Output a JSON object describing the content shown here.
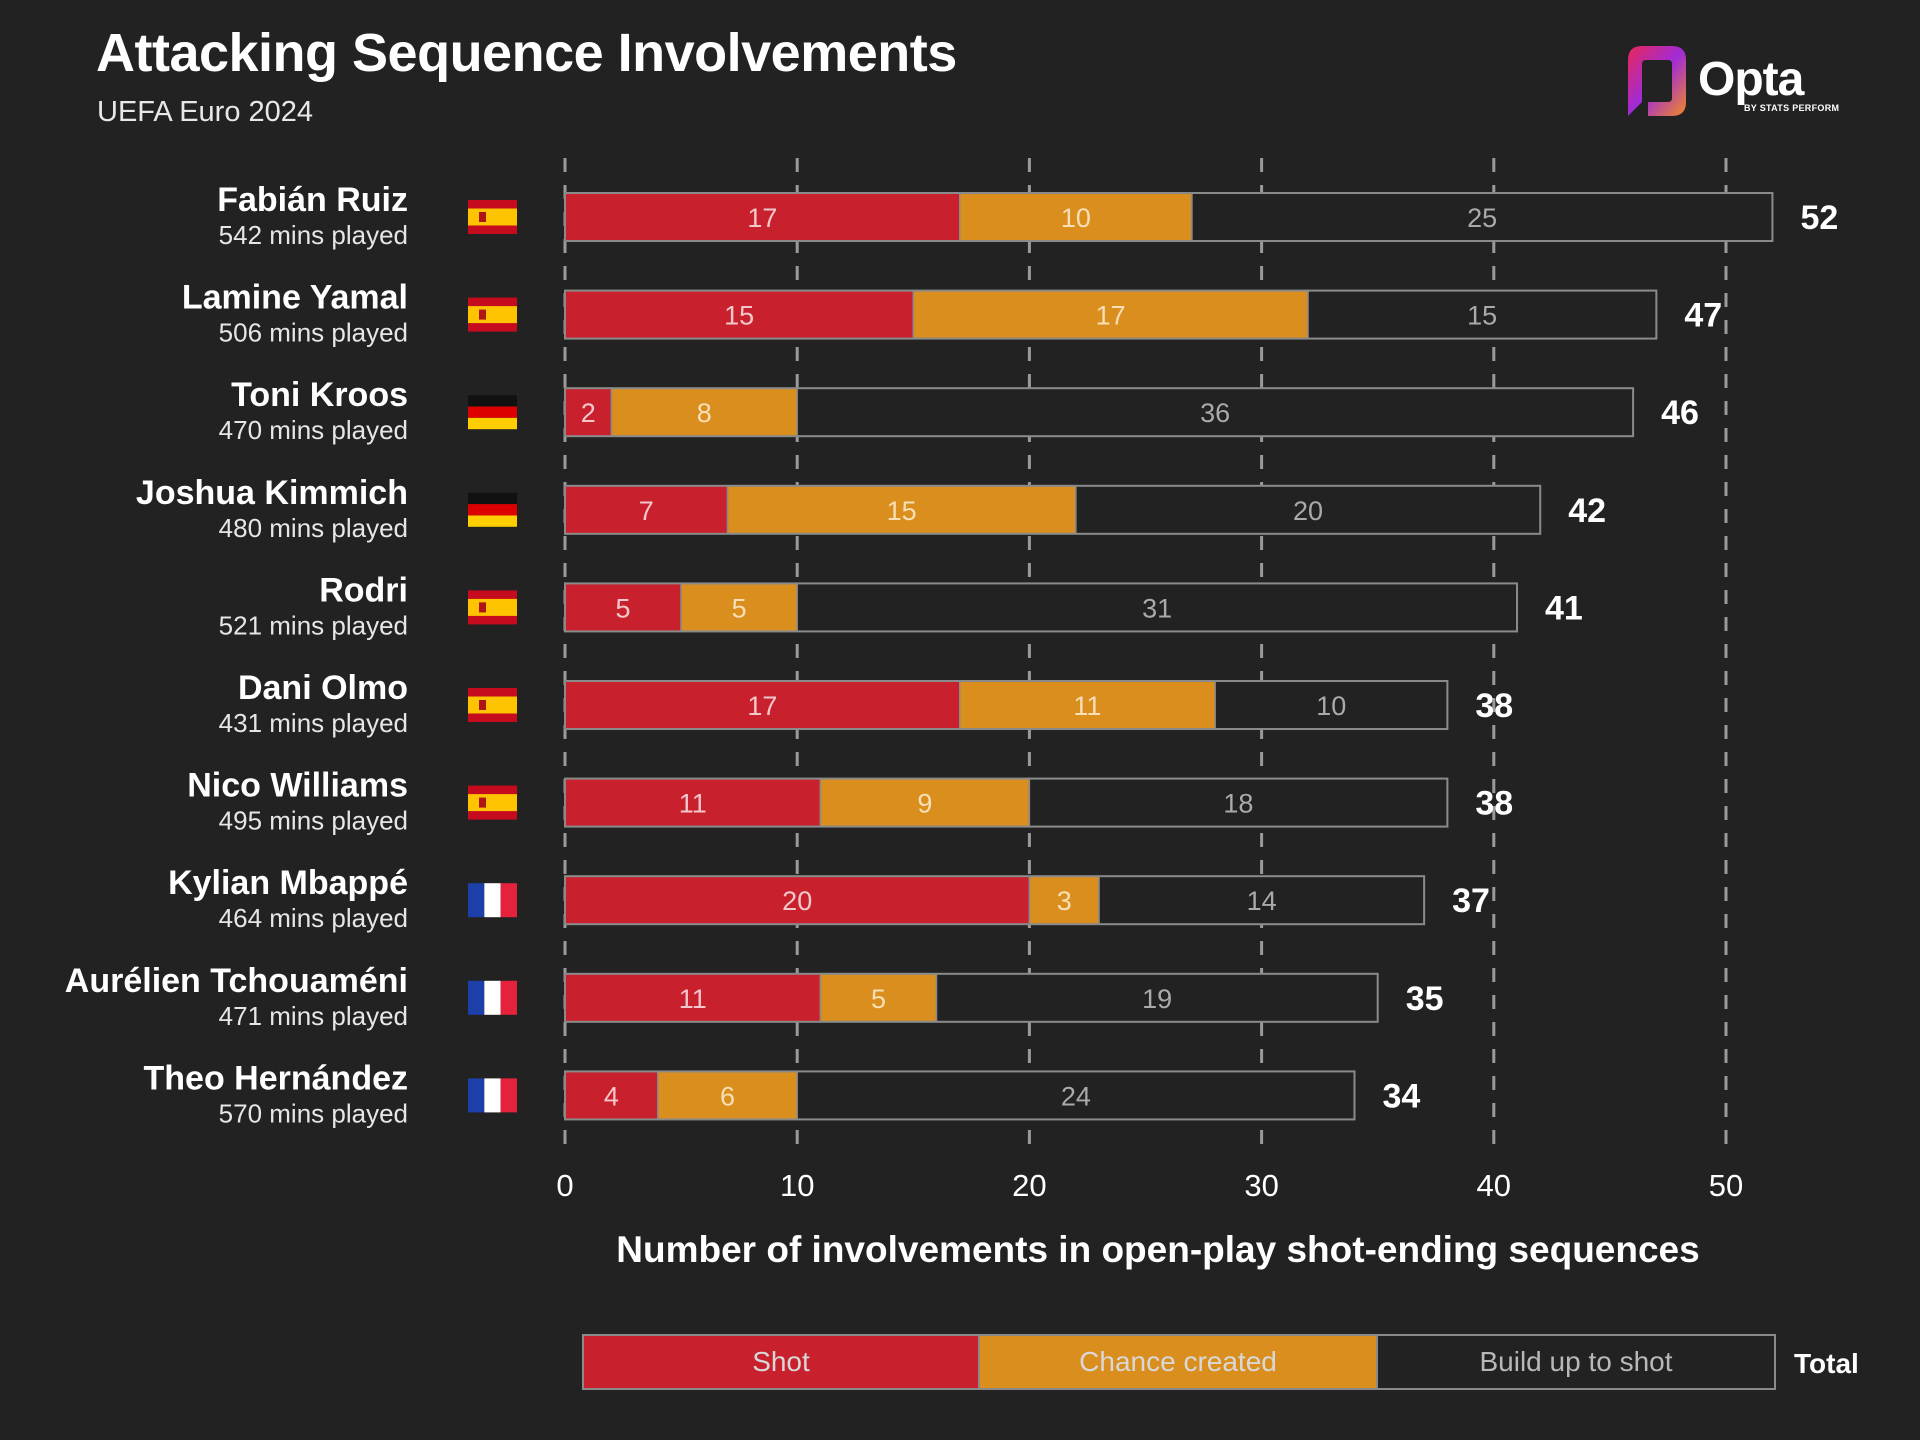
{
  "header": {
    "title": "Attacking Sequence Involvements",
    "subtitle": "UEFA Euro 2024"
  },
  "logo": {
    "word": "Opta",
    "tagline": "BY STATS PERFORM",
    "colors": [
      "#e8275a",
      "#8a2be2",
      "#f08a24"
    ]
  },
  "legend": {
    "shot": "Shot",
    "chance": "Chance created",
    "build": "Build up to shot",
    "total": "Total"
  },
  "colors": {
    "background": "#222222",
    "shot": "#c8202c",
    "chance": "#d98e1e",
    "build": "#222222",
    "outline": "#8a8a8a",
    "grid": "#9a9a9a"
  },
  "chart_data": {
    "type": "bar",
    "orientation": "horizontal",
    "stacked": true,
    "xlabel": "Number of involvements in open-play shot-ending sequences",
    "xlim": [
      0,
      50
    ],
    "xticks": [
      0,
      10,
      20,
      30,
      40,
      50
    ],
    "grid": "vertical dashed",
    "legend_position": "bottom",
    "categories": [
      "Fabián Ruiz",
      "Lamine Yamal",
      "Toni Kroos",
      "Joshua Kimmich",
      "Rodri",
      "Dani Olmo",
      "Nico Williams",
      "Kylian Mbappé",
      "Aurélien Tchouaméni",
      "Theo Hernández"
    ],
    "minutes": [
      "542 mins played",
      "506 mins played",
      "470 mins played",
      "480 mins played",
      "521 mins played",
      "431 mins played",
      "495 mins played",
      "464 mins played",
      "471 mins played",
      "570 mins played"
    ],
    "flags": [
      "spain",
      "spain",
      "germany",
      "germany",
      "spain",
      "spain",
      "spain",
      "france",
      "france",
      "france"
    ],
    "series": [
      {
        "name": "Shot",
        "values": [
          17,
          15,
          2,
          7,
          5,
          17,
          11,
          20,
          11,
          4
        ]
      },
      {
        "name": "Chance created",
        "values": [
          10,
          17,
          8,
          15,
          5,
          11,
          9,
          3,
          5,
          6
        ]
      },
      {
        "name": "Build up to shot",
        "values": [
          25,
          15,
          36,
          20,
          31,
          10,
          18,
          14,
          19,
          24
        ]
      }
    ],
    "totals": [
      52,
      47,
      46,
      42,
      41,
      38,
      38,
      37,
      35,
      34
    ]
  }
}
